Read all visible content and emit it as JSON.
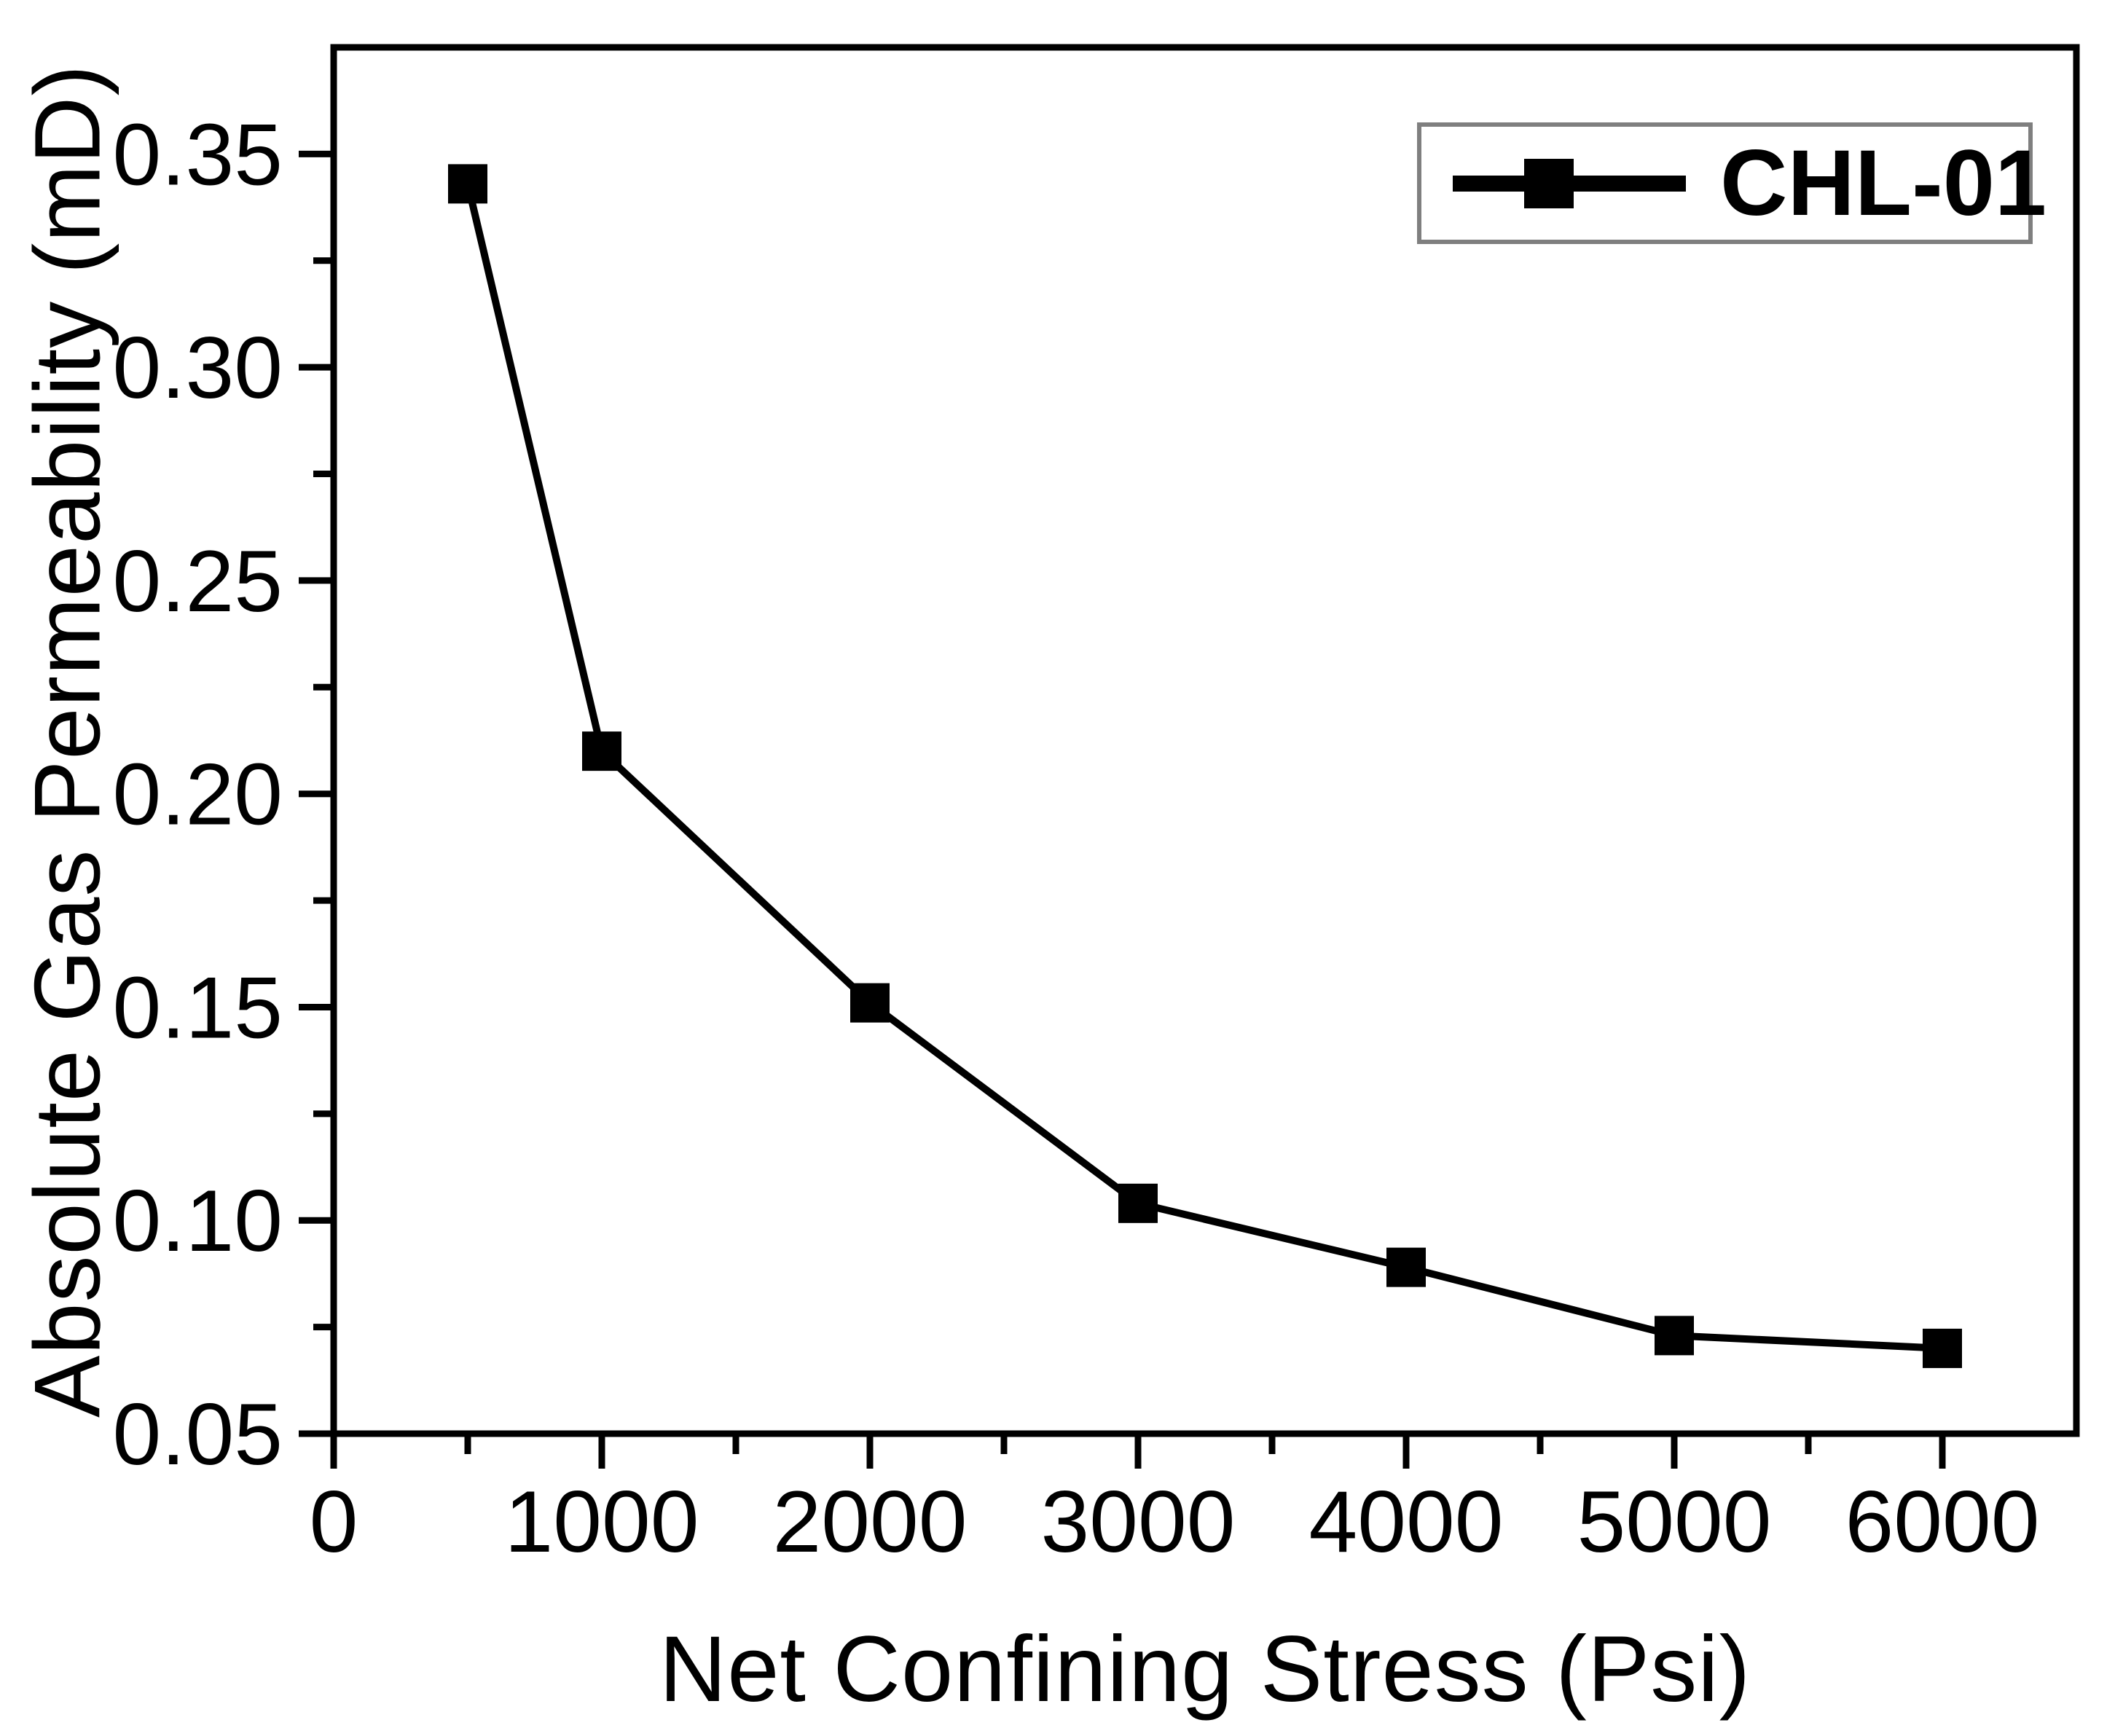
{
  "colors": {
    "background": "#ffffff",
    "axis": "#000000",
    "line": "#000000",
    "marker": "#000000",
    "tick_label": "#000000",
    "legend_border": "#7f7f7f"
  },
  "chart_data": {
    "type": "line",
    "title": "",
    "xlabel": "Net Confining Stress (Psi)",
    "ylabel": "Absolute Gas Permeability (mD)",
    "xlim": [
      0,
      6500
    ],
    "ylim": [
      0.05,
      0.375
    ],
    "grid": false,
    "x_tick_values": [
      0,
      1000,
      2000,
      3000,
      4000,
      5000,
      6000
    ],
    "x_tick_labels": [
      "0",
      "1000",
      "2000",
      "3000",
      "4000",
      "5000",
      "6000"
    ],
    "x_minor_tick_values": [
      500,
      1500,
      2500,
      3500,
      4500,
      5500
    ],
    "y_tick_values": [
      0.05,
      0.1,
      0.15,
      0.2,
      0.25,
      0.3,
      0.35
    ],
    "y_tick_labels": [
      "0.05",
      "0.10",
      "0.15",
      "0.20",
      "0.25",
      "0.30",
      "0.35"
    ],
    "y_minor_tick_values": [
      0.075,
      0.125,
      0.175,
      0.225,
      0.275,
      0.325
    ],
    "legend": {
      "position": "top-right",
      "entries": [
        {
          "label": "CHL-01",
          "marker": "filled-square",
          "line": true
        }
      ]
    },
    "series": [
      {
        "name": "CHL-01",
        "marker": "square",
        "color": "#000000",
        "x": [
          500,
          1000,
          2000,
          3000,
          4000,
          5000,
          6000
        ],
        "y": [
          0.343,
          0.21,
          0.151,
          0.104,
          0.089,
          0.073,
          0.07
        ]
      }
    ]
  }
}
